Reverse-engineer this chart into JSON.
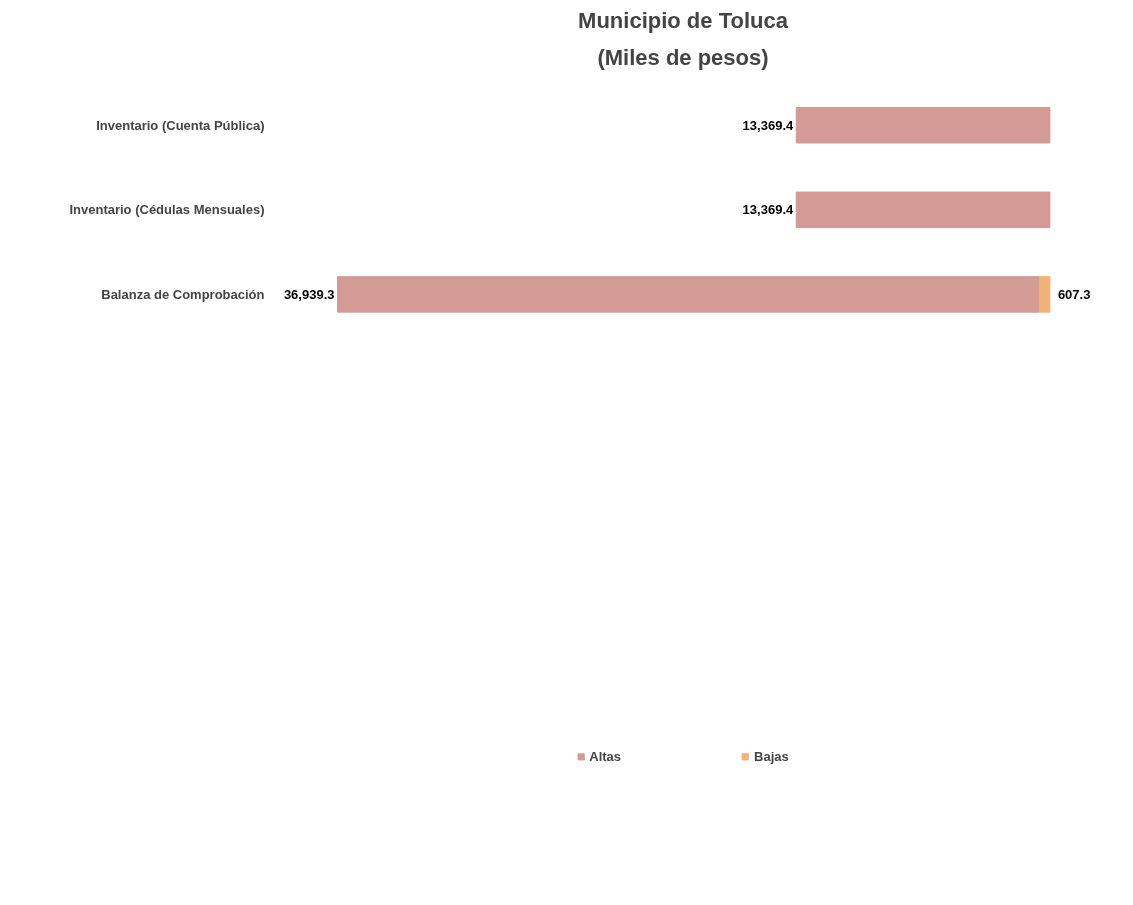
{
  "chart_data": {
    "type": "bar",
    "orientation": "horizontal",
    "stacked": true,
    "title": "Municipio de Toluca",
    "subtitle": "(Miles de pesos)",
    "categories": [
      "Inventario (Cuenta Pública)",
      "Inventario (Cédulas Mensuales)",
      "Balanza de Comprobación"
    ],
    "series": [
      {
        "name": "Bajas",
        "color": "#f0b27a",
        "values": [
          null,
          null,
          607.3
        ],
        "value_labels": [
          null,
          null,
          "607.3"
        ]
      },
      {
        "name": "Altas",
        "color": "#d49a96",
        "values": [
          13369.4,
          13369.4,
          36939.3
        ],
        "value_labels": [
          "13,369.4",
          "13,369.4",
          "36,939.3"
        ]
      }
    ],
    "tick_labels": "y",
    "legend": "bottom",
    "grid": false
  }
}
